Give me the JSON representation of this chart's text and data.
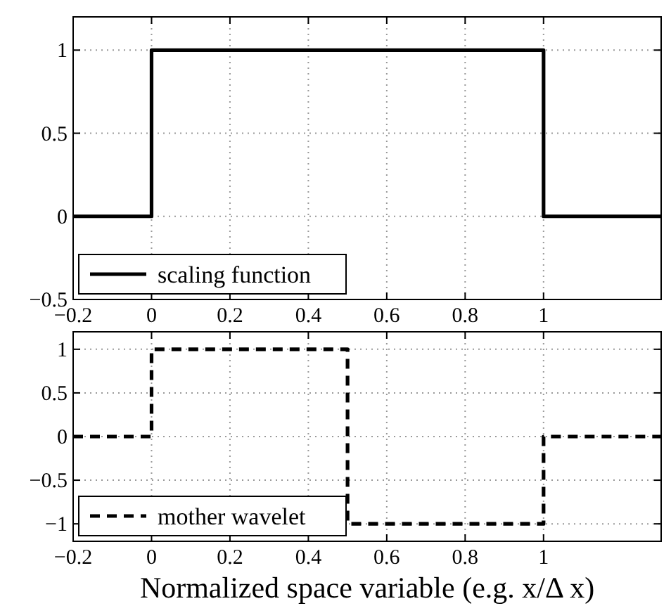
{
  "chart_data": [
    {
      "type": "line",
      "xlim": [
        -0.2,
        1.3
      ],
      "xticks": [
        -0.2,
        0,
        0.2,
        0.4,
        0.6,
        0.8,
        1
      ],
      "ylim": [
        -0.5,
        1.2
      ],
      "yticks": [
        -0.5,
        0,
        0.5,
        1
      ],
      "grid": true,
      "legend": "bottom left",
      "series": [
        {
          "name": "scaling function",
          "color": "#000000",
          "line_style": "solid",
          "x": [
            -0.2,
            0,
            0,
            1,
            1,
            1.3
          ],
          "values": [
            0,
            0,
            1,
            1,
            0,
            0
          ]
        }
      ]
    },
    {
      "type": "line",
      "xlabel": "Normalized space variable (e.g. x/Δ x)",
      "xlim": [
        -0.2,
        1.3
      ],
      "xticks": [
        -0.2,
        0,
        0.2,
        0.4,
        0.6,
        0.8,
        1
      ],
      "ylim": [
        -1.2,
        1.2
      ],
      "yticks": [
        -1,
        -0.5,
        0,
        0.5,
        1
      ],
      "grid": true,
      "legend": "bottom left",
      "series": [
        {
          "name": "mother wavelet",
          "color": "#000000",
          "line_style": "dashed",
          "x": [
            -0.2,
            0,
            0,
            0.5,
            0.5,
            1,
            1,
            1.3
          ],
          "values": [
            0,
            0,
            1,
            1,
            -1,
            -1,
            0,
            0
          ]
        }
      ]
    }
  ]
}
